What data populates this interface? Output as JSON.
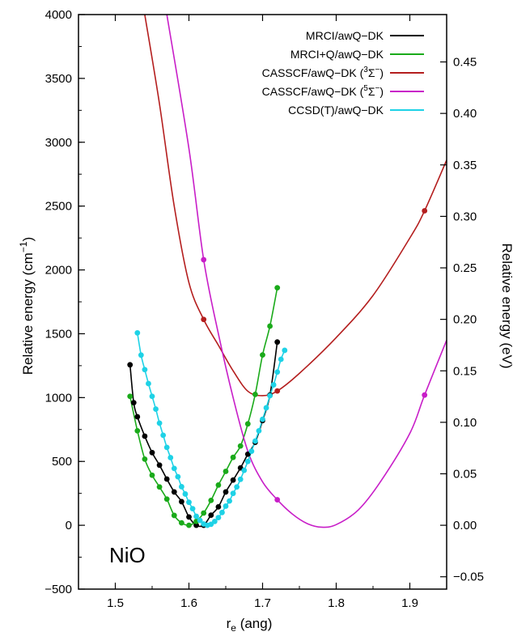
{
  "chart_data": {
    "type": "line",
    "title": "",
    "xlabel": "r_e (ang)",
    "xlabel_main": "r",
    "xlabel_sub": "e",
    "xlabel_rest": " (ang)",
    "ylabel": "Relative energy (cm−1)",
    "ylabel_main": "Relative energy (cm",
    "ylabel_sup": "−1",
    "ylabel_end": ")",
    "ylabel_right": "Relative energy (eV)",
    "xlim": [
      1.45,
      1.95
    ],
    "ylim": [
      -500,
      4000
    ],
    "ylim_right": [
      -0.062,
      0.496
    ],
    "xticks": [
      1.5,
      1.6,
      1.7,
      1.8,
      1.9
    ],
    "xtick_labels": [
      "1.5",
      "1.6",
      "1.7",
      "1.8",
      "1.9"
    ],
    "yticks": [
      -500,
      0,
      500,
      1000,
      1500,
      2000,
      2500,
      3000,
      3500,
      4000
    ],
    "ytick_labels": [
      "−500",
      "0",
      "500",
      "1000",
      "1500",
      "2000",
      "2500",
      "3000",
      "3500",
      "4000"
    ],
    "yticks_right": [
      -0.05,
      0.0,
      0.05,
      0.1,
      0.15,
      0.2,
      0.25,
      0.3,
      0.35,
      0.4,
      0.45
    ],
    "ytick_right_labels": [
      "−0.05",
      "0.00",
      "0.05",
      "0.10",
      "0.15",
      "0.20",
      "0.25",
      "0.30",
      "0.35",
      "0.40",
      "0.45"
    ],
    "legend_position": "top-right",
    "annotation": "NiO",
    "series": [
      {
        "name": "MRCI/awQ−DK",
        "legend_main": "MRCI/awQ−DK",
        "color": "#000000",
        "curve": {
          "type": "quadratic",
          "min_x": 1.61,
          "min_y": 0,
          "k": 35400,
          "x_from": 1.52,
          "x_to": 1.72
        },
        "points": [
          [
            1.52,
            1257
          ],
          [
            1.525,
            960
          ],
          [
            1.53,
            850
          ],
          [
            1.54,
            698
          ],
          [
            1.55,
            569
          ],
          [
            1.56,
            471
          ],
          [
            1.57,
            362
          ],
          [
            1.58,
            261
          ],
          [
            1.59,
            185
          ],
          [
            1.6,
            65
          ],
          [
            1.61,
            0
          ],
          [
            1.62,
            0
          ],
          [
            1.63,
            79
          ],
          [
            1.64,
            144
          ],
          [
            1.65,
            261
          ],
          [
            1.66,
            354
          ],
          [
            1.67,
            449
          ],
          [
            1.68,
            557
          ],
          [
            1.69,
            650
          ],
          [
            1.7,
            820
          ],
          [
            1.71,
            1020
          ],
          [
            1.72,
            1435
          ]
        ]
      },
      {
        "name": "MRCI+Q/awQ−DK",
        "legend_main": "MRCI+Q/awQ−DK",
        "color": "#1aaa1a",
        "curve": {
          "type": "quadratic",
          "min_x": 1.595,
          "min_y": 0,
          "k": 42000,
          "x_from": 1.52,
          "x_to": 1.72
        },
        "points": [
          [
            1.52,
            1010
          ],
          [
            1.53,
            740
          ],
          [
            1.54,
            518
          ],
          [
            1.55,
            392
          ],
          [
            1.56,
            300
          ],
          [
            1.57,
            205
          ],
          [
            1.58,
            77
          ],
          [
            1.59,
            19
          ],
          [
            1.6,
            0
          ],
          [
            1.61,
            31
          ],
          [
            1.62,
            96
          ],
          [
            1.63,
            195
          ],
          [
            1.64,
            315
          ],
          [
            1.65,
            422
          ],
          [
            1.66,
            532
          ],
          [
            1.67,
            621
          ],
          [
            1.68,
            794
          ],
          [
            1.69,
            1025
          ],
          [
            1.7,
            1334
          ],
          [
            1.71,
            1560
          ],
          [
            1.72,
            1860
          ]
        ]
      },
      {
        "name": "CASSCF/awQ−DK (3Σ−)",
        "legend_main": "CASSCF/awQ−DK (",
        "legend_sup": "3",
        "legend_sym": "Σ",
        "legend_symsup": "−",
        "legend_end": ")",
        "color": "#b41e1e",
        "curve": {
          "type": "points",
          "x_from": 1.45,
          "x_to": 1.95
        },
        "curve_points": [
          [
            1.54,
            4000
          ],
          [
            1.56,
            3300
          ],
          [
            1.58,
            2500
          ],
          [
            1.6,
            1900
          ],
          [
            1.62,
            1612
          ],
          [
            1.64,
            1410
          ],
          [
            1.66,
            1210
          ],
          [
            1.68,
            1050
          ],
          [
            1.7,
            1015
          ],
          [
            1.72,
            1052
          ],
          [
            1.75,
            1190
          ],
          [
            1.8,
            1470
          ],
          [
            1.85,
            1800
          ],
          [
            1.9,
            2250
          ],
          [
            1.92,
            2463
          ],
          [
            1.95,
            2860
          ]
        ],
        "points": [
          [
            1.62,
            1612
          ],
          [
            1.72,
            1052
          ],
          [
            1.92,
            2463
          ]
        ]
      },
      {
        "name": "CASSCF/awQ−DK (5Σ−)",
        "legend_main": "CASSCF/awQ−DK (",
        "legend_sup": "5",
        "legend_sym": "Σ",
        "legend_symsup": "−",
        "legend_end": ")",
        "color": "#c81ec8",
        "curve": {
          "type": "points",
          "x_from": 1.45,
          "x_to": 1.95
        },
        "curve_points": [
          [
            1.57,
            4000
          ],
          [
            1.6,
            2950
          ],
          [
            1.62,
            2080
          ],
          [
            1.64,
            1500
          ],
          [
            1.66,
            1000
          ],
          [
            1.68,
            580
          ],
          [
            1.7,
            340
          ],
          [
            1.72,
            200
          ],
          [
            1.74,
            90
          ],
          [
            1.76,
            15
          ],
          [
            1.78,
            -15
          ],
          [
            1.8,
            5
          ],
          [
            1.83,
            120
          ],
          [
            1.86,
            340
          ],
          [
            1.9,
            720
          ],
          [
            1.92,
            1020
          ],
          [
            1.95,
            1450
          ]
        ],
        "points": [
          [
            1.62,
            2080
          ],
          [
            1.72,
            200
          ],
          [
            1.92,
            1020
          ]
        ]
      },
      {
        "name": "CCSD(T)/awQ−DK",
        "legend_main": "CCSD(T)/awQ−DK",
        "color": "#1ed2e6",
        "curve": {
          "type": "quadratic",
          "min_x": 1.625,
          "min_y": 0,
          "k": 46000,
          "x_from": 1.53,
          "x_to": 1.73
        },
        "points": [
          [
            1.53,
            1507
          ],
          [
            1.535,
            1333
          ],
          [
            1.54,
            1219
          ],
          [
            1.545,
            1110
          ],
          [
            1.55,
            1010
          ],
          [
            1.555,
            910
          ],
          [
            1.56,
            800
          ],
          [
            1.565,
            705
          ],
          [
            1.57,
            610
          ],
          [
            1.575,
            530
          ],
          [
            1.58,
            445
          ],
          [
            1.585,
            380
          ],
          [
            1.59,
            302
          ],
          [
            1.595,
            245
          ],
          [
            1.6,
            180
          ],
          [
            1.605,
            130
          ],
          [
            1.61,
            70
          ],
          [
            1.615,
            38
          ],
          [
            1.62,
            10
          ],
          [
            1.625,
            0
          ],
          [
            1.63,
            8
          ],
          [
            1.635,
            30
          ],
          [
            1.64,
            60
          ],
          [
            1.645,
            100
          ],
          [
            1.65,
            150
          ],
          [
            1.655,
            190
          ],
          [
            1.66,
            250
          ],
          [
            1.665,
            300
          ],
          [
            1.67,
            360
          ],
          [
            1.675,
            430
          ],
          [
            1.68,
            500
          ],
          [
            1.685,
            580
          ],
          [
            1.69,
            660
          ],
          [
            1.695,
            740
          ],
          [
            1.7,
            830
          ],
          [
            1.705,
            920
          ],
          [
            1.71,
            1015
          ],
          [
            1.715,
            1100
          ],
          [
            1.72,
            1200
          ],
          [
            1.725,
            1300
          ],
          [
            1.73,
            1370
          ]
        ]
      }
    ]
  }
}
